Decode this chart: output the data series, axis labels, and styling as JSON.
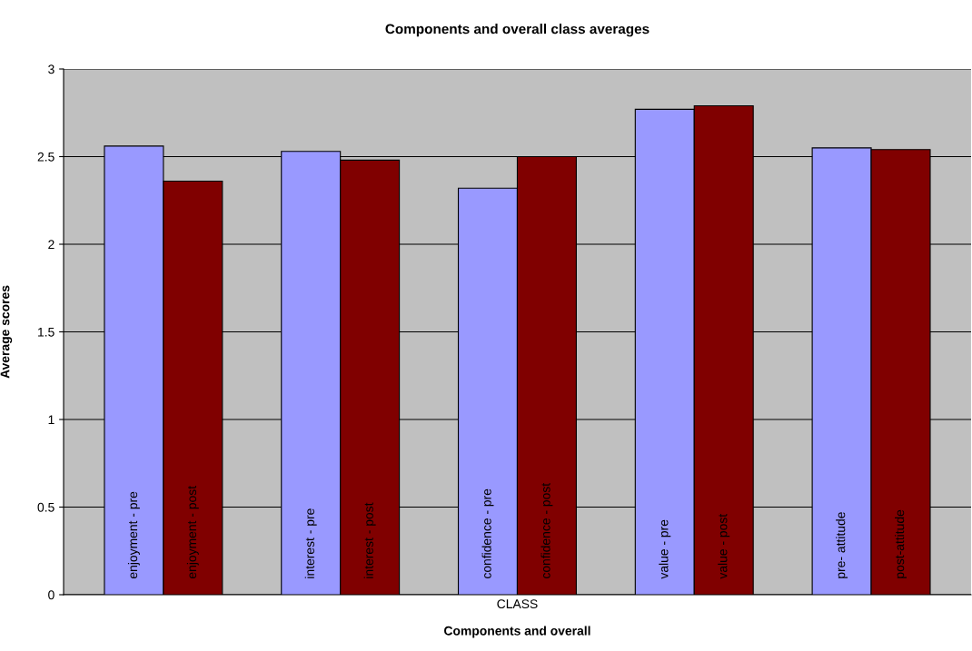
{
  "chart_data": {
    "type": "bar",
    "title": "Components and overall class averages",
    "xlabel": "Components and overall",
    "ylabel": "Average scores",
    "categories": [
      "CLASS"
    ],
    "series": [
      {
        "name": "enjoyment - pre",
        "color": "#9999ff",
        "values": [
          2.56
        ]
      },
      {
        "name": "enjoyment - post",
        "color": "#800000",
        "values": [
          2.36
        ]
      },
      {
        "name": "interest - pre",
        "color": "#9999ff",
        "values": [
          2.53
        ]
      },
      {
        "name": "interest - post",
        "color": "#800000",
        "values": [
          2.48
        ]
      },
      {
        "name": "confidence - pre",
        "color": "#9999ff",
        "values": [
          2.32
        ]
      },
      {
        "name": "confidence - post",
        "color": "#800000",
        "values": [
          2.5
        ]
      },
      {
        "name": "value - pre",
        "color": "#9999ff",
        "values": [
          2.77
        ]
      },
      {
        "name": "value - post",
        "color": "#800000",
        "values": [
          2.79
        ]
      },
      {
        "name": "pre- attitude",
        "color": "#9999ff",
        "values": [
          2.55
        ]
      },
      {
        "name": "post-attitude",
        "color": "#800000",
        "values": [
          2.54
        ]
      }
    ],
    "ylim": [
      0,
      3
    ],
    "yticks": [
      0,
      0.5,
      1,
      1.5,
      2,
      2.5,
      3
    ],
    "grid": "y",
    "legend": false
  }
}
